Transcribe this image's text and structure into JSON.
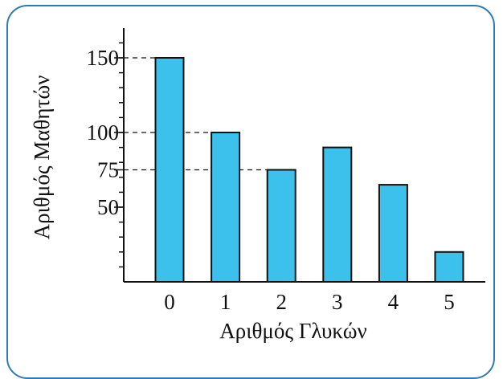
{
  "chart_data": {
    "type": "bar",
    "categories": [
      "0",
      "1",
      "2",
      "3",
      "4",
      "5"
    ],
    "values": [
      150,
      100,
      75,
      90,
      65,
      20
    ],
    "title": "",
    "xlabel": "Αριθμός Γλυκών",
    "ylabel": "Αριθμός Μαθητών",
    "ylim": [
      0,
      170
    ],
    "y_labeled_ticks": [
      50,
      75,
      100,
      150
    ],
    "y_minor_step": 10,
    "dashed_reference_values": [
      150,
      100,
      75
    ],
    "bar_color": "#3cc0ec",
    "bar_stroke": "#111111",
    "frame_color": "#2c7bb6",
    "grid": false
  }
}
